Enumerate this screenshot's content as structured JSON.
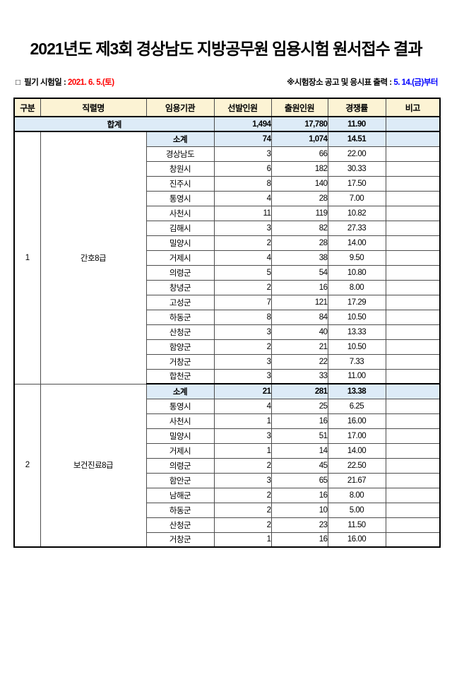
{
  "title": "2021년도 제3회 경상남도 지방공무원 임용시험 원서접수 결과",
  "info": {
    "bullet_icon": "□",
    "exam_date_label": "필기 시험일 :",
    "exam_date_value": "2021. 6. 5.(토)",
    "notice_label": "※시험장소 공고 및 응시표 출력 :",
    "notice_value": "5. 14.(금)부터"
  },
  "colors": {
    "header_bg": "#FCF3D4",
    "summary_bg": "#DDEBF7",
    "exam_date_color": "#FF0000",
    "notice_color": "#0000FF",
    "outer_border": "#000000",
    "inner_border": "#4D4D4D"
  },
  "table": {
    "columns": [
      "구분",
      "직렬명",
      "임용기관",
      "선발인원",
      "출원인원",
      "경쟁률",
      "비고"
    ],
    "total": {
      "label": "합계",
      "selected": "1,494",
      "applied": "17,780",
      "ratio": "11.90",
      "note": ""
    },
    "subtotal_label": "소계",
    "groups": [
      {
        "no": "1",
        "series": "간호8급",
        "subtotal": {
          "selected": "74",
          "applied": "1,074",
          "ratio": "14.51",
          "note": ""
        },
        "rows": [
          {
            "agency": "경상남도",
            "selected": "3",
            "applied": "66",
            "ratio": "22.00",
            "note": ""
          },
          {
            "agency": "창원시",
            "selected": "6",
            "applied": "182",
            "ratio": "30.33",
            "note": ""
          },
          {
            "agency": "진주시",
            "selected": "8",
            "applied": "140",
            "ratio": "17.50",
            "note": ""
          },
          {
            "agency": "통영시",
            "selected": "4",
            "applied": "28",
            "ratio": "7.00",
            "note": ""
          },
          {
            "agency": "사천시",
            "selected": "11",
            "applied": "119",
            "ratio": "10.82",
            "note": ""
          },
          {
            "agency": "김해시",
            "selected": "3",
            "applied": "82",
            "ratio": "27.33",
            "note": ""
          },
          {
            "agency": "밀양시",
            "selected": "2",
            "applied": "28",
            "ratio": "14.00",
            "note": ""
          },
          {
            "agency": "거제시",
            "selected": "4",
            "applied": "38",
            "ratio": "9.50",
            "note": ""
          },
          {
            "agency": "의령군",
            "selected": "5",
            "applied": "54",
            "ratio": "10.80",
            "note": ""
          },
          {
            "agency": "창녕군",
            "selected": "2",
            "applied": "16",
            "ratio": "8.00",
            "note": ""
          },
          {
            "agency": "고성군",
            "selected": "7",
            "applied": "121",
            "ratio": "17.29",
            "note": ""
          },
          {
            "agency": "하동군",
            "selected": "8",
            "applied": "84",
            "ratio": "10.50",
            "note": ""
          },
          {
            "agency": "산청군",
            "selected": "3",
            "applied": "40",
            "ratio": "13.33",
            "note": ""
          },
          {
            "agency": "함양군",
            "selected": "2",
            "applied": "21",
            "ratio": "10.50",
            "note": ""
          },
          {
            "agency": "거창군",
            "selected": "3",
            "applied": "22",
            "ratio": "7.33",
            "note": ""
          },
          {
            "agency": "합천군",
            "selected": "3",
            "applied": "33",
            "ratio": "11.00",
            "note": ""
          }
        ]
      },
      {
        "no": "2",
        "series": "보건진료8급",
        "subtotal": {
          "selected": "21",
          "applied": "281",
          "ratio": "13.38",
          "note": ""
        },
        "rows": [
          {
            "agency": "통영시",
            "selected": "4",
            "applied": "25",
            "ratio": "6.25",
            "note": ""
          },
          {
            "agency": "사천시",
            "selected": "1",
            "applied": "16",
            "ratio": "16.00",
            "note": ""
          },
          {
            "agency": "밀양시",
            "selected": "3",
            "applied": "51",
            "ratio": "17.00",
            "note": ""
          },
          {
            "agency": "거제시",
            "selected": "1",
            "applied": "14",
            "ratio": "14.00",
            "note": ""
          },
          {
            "agency": "의령군",
            "selected": "2",
            "applied": "45",
            "ratio": "22.50",
            "note": ""
          },
          {
            "agency": "함안군",
            "selected": "3",
            "applied": "65",
            "ratio": "21.67",
            "note": ""
          },
          {
            "agency": "남해군",
            "selected": "2",
            "applied": "16",
            "ratio": "8.00",
            "note": ""
          },
          {
            "agency": "하동군",
            "selected": "2",
            "applied": "10",
            "ratio": "5.00",
            "note": ""
          },
          {
            "agency": "산청군",
            "selected": "2",
            "applied": "23",
            "ratio": "11.50",
            "note": ""
          },
          {
            "agency": "거창군",
            "selected": "1",
            "applied": "16",
            "ratio": "16.00",
            "note": ""
          }
        ]
      }
    ]
  }
}
